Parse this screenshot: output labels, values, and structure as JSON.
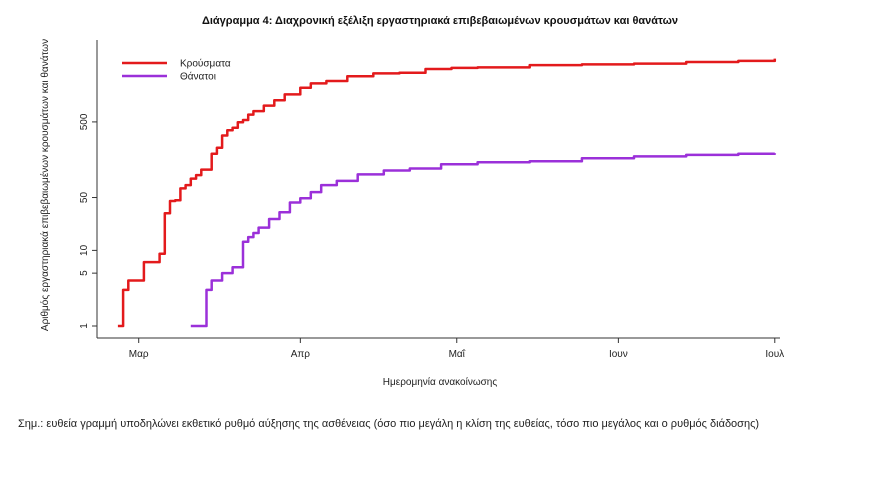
{
  "chart_data": {
    "type": "line",
    "title": "Διάγραμμα 4: Διαχρονική εξέλιξη εργαστηριακά επιβεβαιωμένων κρουσμάτων και θανάτων",
    "xlabel": "Ημερομηνία ανακοίνωσης",
    "ylabel": "Αριθμός εργαστηριακά επιβεβαιωμένων κρουσμάτων και θανάτων",
    "y_scale": "log",
    "ylim": [
      1,
      3500
    ],
    "y_ticks": [
      1,
      5,
      10,
      50,
      500
    ],
    "x_ticks": [
      "Μαρ",
      "Απρ",
      "Μαΐ",
      "Ιουν",
      "Ιουλ"
    ],
    "xlim": [
      "2020-02-22",
      "2020-07-02"
    ],
    "grid": false,
    "legend_position": "top-left",
    "series": [
      {
        "name": "Κρούσματα",
        "color": "#e31a1c",
        "x": [
          "2020-02-26",
          "2020-02-27",
          "2020-02-28",
          "2020-03-01",
          "2020-03-02",
          "2020-03-04",
          "2020-03-05",
          "2020-03-06",
          "2020-03-07",
          "2020-03-08",
          "2020-03-09",
          "2020-03-10",
          "2020-03-11",
          "2020-03-12",
          "2020-03-13",
          "2020-03-15",
          "2020-03-16",
          "2020-03-17",
          "2020-03-18",
          "2020-03-19",
          "2020-03-20",
          "2020-03-21",
          "2020-03-22",
          "2020-03-23",
          "2020-03-25",
          "2020-03-27",
          "2020-03-29",
          "2020-04-01",
          "2020-04-03",
          "2020-04-06",
          "2020-04-10",
          "2020-04-15",
          "2020-04-20",
          "2020-04-25",
          "2020-04-30",
          "2020-05-05",
          "2020-05-15",
          "2020-05-25",
          "2020-06-04",
          "2020-06-14",
          "2020-06-24",
          "2020-07-01"
        ],
        "values": [
          1,
          3,
          4,
          4,
          7,
          7,
          9,
          31,
          45,
          46,
          66,
          73,
          89,
          99,
          117,
          190,
          228,
          331,
          387,
          418,
          495,
          530,
          624,
          695,
          821,
          966,
          1156,
          1415,
          1613,
          1735,
          2011,
          2192,
          2235,
          2506,
          2591,
          2626,
          2819,
          2876,
          2952,
          3102,
          3203,
          3432
        ]
      },
      {
        "name": "Θάνατοι",
        "color": "#9b30d9",
        "x": [
          "2020-03-11",
          "2020-03-13",
          "2020-03-14",
          "2020-03-15",
          "2020-03-16",
          "2020-03-17",
          "2020-03-18",
          "2020-03-19",
          "2020-03-20",
          "2020-03-21",
          "2020-03-22",
          "2020-03-23",
          "2020-03-24",
          "2020-03-26",
          "2020-03-28",
          "2020-03-30",
          "2020-04-01",
          "2020-04-03",
          "2020-04-05",
          "2020-04-08",
          "2020-04-12",
          "2020-04-17",
          "2020-04-22",
          "2020-04-28",
          "2020-05-05",
          "2020-05-15",
          "2020-05-25",
          "2020-06-04",
          "2020-06-14",
          "2020-06-24",
          "2020-07-01"
        ],
        "values": [
          1,
          1,
          3,
          4,
          4,
          5,
          5,
          6,
          6,
          13,
          15,
          17,
          20,
          26,
          32,
          43,
          49,
          59,
          73,
          83,
          101,
          114,
          121,
          138,
          146,
          151,
          165,
          175,
          183,
          190,
          192
        ]
      }
    ]
  },
  "note": "Σημ.: ευθεία γραμμή υποδηλώνει εκθετικό ρυθμό αύξησης της ασθένειας (όσο πιο μεγάλη η κλίση της ευθείας, τόσο πιο μεγάλος και ο ρυθμός διάδοσης)"
}
